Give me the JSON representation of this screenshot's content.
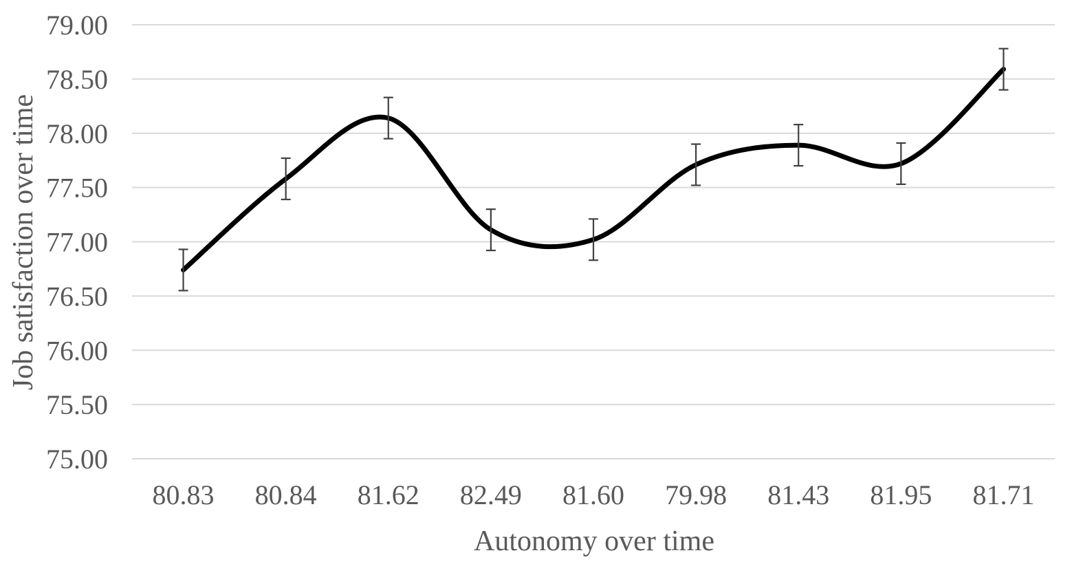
{
  "chart_data": {
    "type": "line",
    "smooth": true,
    "xlabel": "Autonomy over time",
    "ylabel": "Job satisfaction over time",
    "categories": [
      "80.83",
      "80.84",
      "81.62",
      "82.49",
      "81.60",
      "79.98",
      "81.43",
      "81.95",
      "81.71"
    ],
    "ylim": [
      75.0,
      79.0
    ],
    "yticks": [
      "75.00",
      "75.50",
      "76.00",
      "76.50",
      "77.00",
      "77.50",
      "78.00",
      "78.50",
      "79.00"
    ],
    "series": [
      {
        "values": [
          76.74,
          77.58,
          78.14,
          77.11,
          77.02,
          77.71,
          77.89,
          77.72,
          78.59
        ],
        "error_upper": [
          76.93,
          77.77,
          78.33,
          77.3,
          77.21,
          77.9,
          78.08,
          77.91,
          78.78
        ],
        "error_lower": [
          76.55,
          77.39,
          77.95,
          76.92,
          76.83,
          77.52,
          77.7,
          77.53,
          78.4
        ],
        "color": "#000000"
      }
    ],
    "grid": true,
    "legend": "none"
  }
}
